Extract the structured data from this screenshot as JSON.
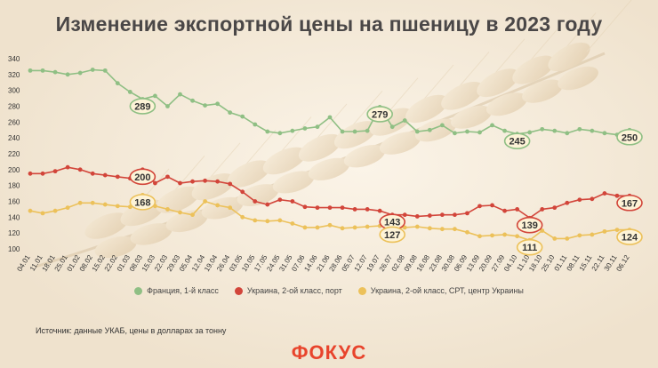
{
  "title": "Изменение экспортной цены на пшеницу в 2023 году",
  "source": "Источник: данные УКАБ, цены в долларах за тонну",
  "brand": "ФОКУС",
  "colors": {
    "france": "#8fbf84",
    "ukraine_port": "#d2453a",
    "ukraine_cpt": "#ecc15a",
    "callout_fill": "#fdf3d7"
  },
  "chart_data": {
    "type": "line",
    "title": "Изменение экспортной цены на пшеницу в 2023 году",
    "xlabel": "",
    "ylabel": "",
    "ylim": [
      100,
      340
    ],
    "yticks": [
      100,
      120,
      140,
      160,
      180,
      200,
      220,
      240,
      260,
      280,
      300,
      320,
      340
    ],
    "grid": false,
    "legend_position": "bottom",
    "x_tick_labels": [
      "04.01",
      "11.01",
      "18.01",
      "25.01",
      "01.02",
      "08.02",
      "15.02",
      "22.02",
      "01.03",
      "08.03",
      "15.03",
      "22.03",
      "29.03",
      "05.04",
      "12.04",
      "19.04",
      "26.04",
      "03.05",
      "10.05",
      "17.05",
      "24.05",
      "31.05",
      "07.06",
      "14.06",
      "21.06",
      "28.06",
      "05.07",
      "12.07",
      "19.07",
      "26.07",
      "02.08",
      "09.08",
      "16.08",
      "23.08",
      "30.08",
      "06.09",
      "13.09",
      "20.09",
      "27.09",
      "04.10",
      "11.10",
      "18.10",
      "25.10",
      "01.11",
      "08.11",
      "15.11",
      "22.11",
      "30.11",
      "06.12"
    ],
    "series": [
      {
        "name": "Франция, 1-й класс",
        "color": "#8fbf84",
        "values": [
          325,
          325,
          323,
          320,
          322,
          326,
          325,
          309,
          298,
          289,
          293,
          280,
          295,
          287,
          281,
          283,
          272,
          267,
          257,
          248,
          246,
          249,
          252,
          254,
          266,
          248,
          248,
          249,
          279,
          254,
          262,
          248,
          250,
          256,
          246,
          248,
          247,
          256,
          249,
          245,
          247,
          251,
          249,
          246,
          251,
          249,
          246,
          244,
          250
        ],
        "callouts": [
          {
            "index": 9,
            "label": "289"
          },
          {
            "index": 28,
            "label": "279"
          },
          {
            "index": 39,
            "label": "245"
          },
          {
            "index": 48,
            "label": "250"
          }
        ]
      },
      {
        "name": "Украина, 2-ой класс, порт",
        "color": "#d2453a",
        "values": [
          195,
          195,
          198,
          203,
          200,
          195,
          193,
          191,
          189,
          200,
          183,
          191,
          183,
          185,
          186,
          185,
          182,
          172,
          160,
          156,
          162,
          160,
          153,
          152,
          152,
          152,
          150,
          150,
          148,
          143,
          143,
          141,
          142,
          143,
          143,
          145,
          154,
          155,
          148,
          150,
          139,
          150,
          152,
          158,
          162,
          163,
          170,
          167,
          167
        ],
        "callouts": [
          {
            "index": 9,
            "label": "200"
          },
          {
            "index": 29,
            "label": "143"
          },
          {
            "index": 40,
            "label": "139"
          },
          {
            "index": 48,
            "label": "167"
          }
        ]
      },
      {
        "name": "Украина, 2-ой класс, СРТ, центр Украины",
        "color": "#ecc15a",
        "values": [
          148,
          145,
          148,
          152,
          158,
          158,
          156,
          154,
          153,
          168,
          154,
          150,
          146,
          143,
          160,
          155,
          152,
          140,
          136,
          135,
          136,
          132,
          127,
          127,
          130,
          126,
          127,
          128,
          129,
          127,
          127,
          128,
          126,
          125,
          125,
          121,
          116,
          117,
          118,
          116,
          111,
          123,
          113,
          113,
          117,
          118,
          122,
          124,
          124
        ],
        "callouts": [
          {
            "index": 9,
            "label": "168"
          },
          {
            "index": 29,
            "label": "127"
          },
          {
            "index": 40,
            "label": "111"
          },
          {
            "index": 48,
            "label": "124"
          }
        ]
      }
    ]
  }
}
